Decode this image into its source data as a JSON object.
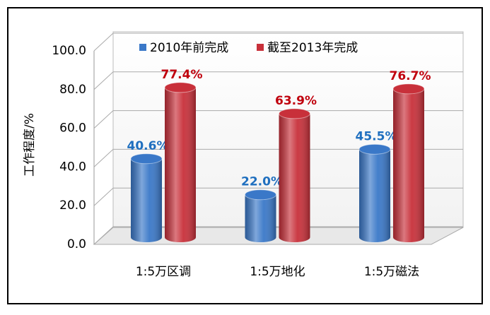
{
  "chart_data": {
    "type": "bar3d",
    "y_label": "工作程度/%",
    "categories": [
      "1:5万区调",
      "1:5万地化",
      "1:5万磁法"
    ],
    "series": [
      {
        "name": "2010年前完成",
        "color": "#3a78c8",
        "label_color": "#1f6fbf",
        "values": [
          40.6,
          22.0,
          45.5
        ],
        "value_labels": [
          "40.6%",
          "22.0%",
          "45.5%"
        ]
      },
      {
        "name": "截至2013年完成",
        "color": "#c8303a",
        "label_color": "#c0000d",
        "values": [
          77.4,
          63.9,
          76.7
        ],
        "value_labels": [
          "77.4%",
          "63.9%",
          "76.7%"
        ]
      }
    ],
    "ylim": [
      0,
      100
    ],
    "yticks": [
      {
        "value": 0,
        "label": "0.0"
      },
      {
        "value": 20,
        "label": "20.0"
      },
      {
        "value": 40,
        "label": "40.0"
      },
      {
        "value": 60,
        "label": "60.0"
      },
      {
        "value": 80,
        "label": "80.0"
      },
      {
        "value": 100,
        "label": "100.0"
      }
    ],
    "grid": true,
    "legend": "top"
  }
}
